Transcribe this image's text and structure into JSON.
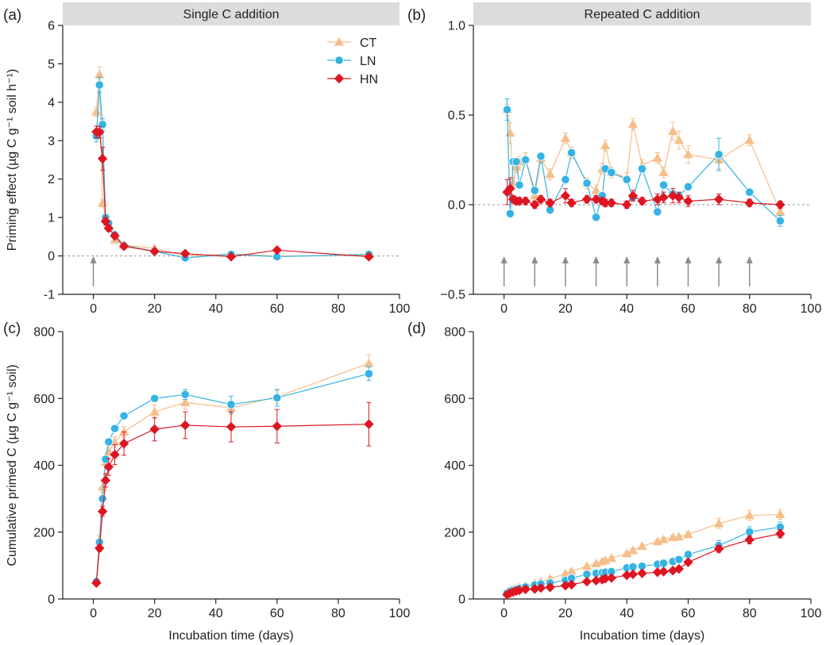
{
  "legend": [
    {
      "name": "CT",
      "color": "#F5BE8A",
      "marker": "triangle"
    },
    {
      "name": "LN",
      "color": "#35B3E3",
      "marker": "circle"
    },
    {
      "name": "HN",
      "color": "#DD1622",
      "marker": "diamond"
    }
  ],
  "chart_data": [
    {
      "panel": "(a)",
      "type": "line",
      "strip_title": "Single C addition",
      "ylabel": "Priming effect (µg C g⁻¹ soil h⁻¹)",
      "xlabel": "",
      "xlim": [
        -10,
        100
      ],
      "ylim": [
        -1,
        6
      ],
      "xticks": [
        0,
        20,
        40,
        60,
        80,
        100
      ],
      "yticks": [
        -1,
        0,
        1,
        2,
        3,
        4,
        5,
        6
      ],
      "zero_line": true,
      "arrows_x": [
        0
      ],
      "legend": "top-right",
      "series": [
        {
          "name": "CT",
          "x": [
            1,
            2,
            3,
            4,
            5,
            7,
            10,
            20,
            30,
            45,
            60,
            90
          ],
          "y": [
            3.75,
            4.72,
            1.38,
            1.0,
            0.8,
            0.42,
            0.28,
            0.2,
            0.0,
            0.05,
            0.0,
            0.02
          ],
          "err": [
            0.12,
            0.2,
            0.1,
            0.1,
            0.08,
            0.05,
            0.04,
            0.04,
            0.03,
            0.03,
            0.03,
            0.03
          ]
        },
        {
          "name": "LN",
          "x": [
            1,
            2,
            3,
            4,
            5,
            7,
            10,
            20,
            30,
            45,
            60,
            90
          ],
          "y": [
            3.12,
            4.45,
            3.42,
            1.0,
            0.85,
            0.55,
            0.27,
            0.12,
            -0.05,
            0.04,
            -0.02,
            0.04
          ],
          "err": [
            0.15,
            0.2,
            0.15,
            0.1,
            0.08,
            0.05,
            0.04,
            0.04,
            0.03,
            0.03,
            0.03,
            0.03
          ]
        },
        {
          "name": "HN",
          "x": [
            1,
            2,
            3,
            4,
            5,
            7,
            10,
            20,
            30,
            45,
            60,
            90
          ],
          "y": [
            3.23,
            3.22,
            2.53,
            0.9,
            0.72,
            0.52,
            0.25,
            0.12,
            0.06,
            -0.02,
            0.15,
            -0.02
          ],
          "err": [
            0.15,
            0.15,
            0.3,
            0.1,
            0.08,
            0.05,
            0.04,
            0.04,
            0.03,
            0.03,
            0.03,
            0.03
          ]
        }
      ]
    },
    {
      "panel": "(b)",
      "type": "line",
      "strip_title": "Repeated C addition",
      "ylabel": "",
      "xlabel": "",
      "xlim": [
        -10,
        100
      ],
      "ylim": [
        -0.5,
        1.0
      ],
      "xticks": [
        0,
        20,
        40,
        60,
        80,
        100
      ],
      "yticks": [
        -0.5,
        0.0,
        0.5,
        1.0
      ],
      "yticklabels": [
        "−0.5",
        "0.0",
        "0.5",
        "1.0"
      ],
      "zero_line": true,
      "arrows_x": [
        0,
        10,
        20,
        30,
        40,
        50,
        60,
        70,
        80
      ],
      "series": [
        {
          "name": "CT",
          "x": [
            1,
            2,
            3,
            4,
            5,
            7,
            10,
            12,
            15,
            20,
            22,
            27,
            30,
            32,
            33,
            35,
            40,
            42,
            45,
            50,
            52,
            55,
            57,
            60,
            70,
            80,
            90
          ],
          "y": [
            0.53,
            0.4,
            0.12,
            0.21,
            0.24,
            0.26,
            0.05,
            0.26,
            0.17,
            0.37,
            0.29,
            0.12,
            0.08,
            0.2,
            0.33,
            0.18,
            0.15,
            0.45,
            0.22,
            0.26,
            0.18,
            0.41,
            0.36,
            0.28,
            0.25,
            0.36,
            -0.04
          ],
          "err": [
            0.03,
            0.06,
            0.03,
            0.03,
            0.03,
            0.03,
            0.03,
            0.03,
            0.03,
            0.03,
            0.03,
            0.03,
            0.03,
            0.03,
            0.03,
            0.03,
            0.03,
            0.03,
            0.03,
            0.03,
            0.03,
            0.05,
            0.05,
            0.05,
            0.05,
            0.03,
            0.03
          ]
        },
        {
          "name": "LN",
          "x": [
            1,
            2,
            3,
            4,
            5,
            7,
            10,
            12,
            15,
            20,
            22,
            27,
            30,
            32,
            33,
            35,
            40,
            42,
            45,
            50,
            52,
            55,
            57,
            60,
            70,
            80,
            90
          ],
          "y": [
            0.53,
            -0.05,
            0.24,
            0.24,
            0.11,
            0.25,
            0.08,
            0.27,
            -0.03,
            0.14,
            0.29,
            0.12,
            -0.07,
            0.05,
            0.2,
            0.18,
            0.14,
            0.04,
            0.2,
            -0.04,
            0.11,
            0.06,
            0.05,
            0.1,
            0.28,
            0.07,
            -0.09
          ],
          "err": [
            0.06,
            0.02,
            0.02,
            0.02,
            0.02,
            0.02,
            0.02,
            0.02,
            0.02,
            0.02,
            0.02,
            0.02,
            0.02,
            0.02,
            0.02,
            0.02,
            0.02,
            0.02,
            0.02,
            0.02,
            0.02,
            0.02,
            0.02,
            0.02,
            0.09,
            0.02,
            0.03
          ]
        },
        {
          "name": "HN",
          "x": [
            1,
            2,
            3,
            4,
            5,
            7,
            10,
            12,
            15,
            20,
            22,
            27,
            30,
            32,
            33,
            35,
            40,
            42,
            45,
            50,
            52,
            55,
            57,
            60,
            70,
            80,
            90
          ],
          "y": [
            0.07,
            0.09,
            0.03,
            0.02,
            0.02,
            0.02,
            0.0,
            0.03,
            0.01,
            0.05,
            0.01,
            0.03,
            0.03,
            0.02,
            0.01,
            0.01,
            0.0,
            0.05,
            0.02,
            0.03,
            0.04,
            0.05,
            0.04,
            0.02,
            0.03,
            0.01,
            0.0
          ],
          "err": [
            0.07,
            0.06,
            0.02,
            0.02,
            0.02,
            0.02,
            0.02,
            0.02,
            0.02,
            0.04,
            0.02,
            0.02,
            0.02,
            0.02,
            0.02,
            0.02,
            0.02,
            0.03,
            0.02,
            0.03,
            0.03,
            0.04,
            0.03,
            0.03,
            0.03,
            0.02,
            0.02
          ]
        }
      ]
    },
    {
      "panel": "(c)",
      "type": "line",
      "strip_title": "",
      "ylabel": "Cumulative primed C (µg C g⁻¹ soil)",
      "xlabel": "Incubation time (days)",
      "xlim": [
        -10,
        100
      ],
      "ylim": [
        0,
        800
      ],
      "xticks": [
        0,
        20,
        40,
        60,
        80,
        100
      ],
      "yticks": [
        0,
        200,
        400,
        600,
        800
      ],
      "series": [
        {
          "name": "CT",
          "x": [
            1,
            2,
            3,
            4,
            5,
            7,
            10,
            20,
            30,
            45,
            60,
            90
          ],
          "y": [
            55,
            180,
            335,
            410,
            440,
            470,
            500,
            560,
            588,
            572,
            605,
            705
          ],
          "err": [
            5,
            10,
            15,
            15,
            15,
            15,
            15,
            20,
            20,
            20,
            20,
            25
          ]
        },
        {
          "name": "LN",
          "x": [
            1,
            2,
            3,
            4,
            5,
            7,
            10,
            20,
            30,
            45,
            60,
            90
          ],
          "y": [
            52,
            170,
            300,
            418,
            470,
            510,
            548,
            600,
            612,
            582,
            602,
            674
          ],
          "err": [
            5,
            10,
            10,
            10,
            10,
            10,
            10,
            10,
            15,
            25,
            25,
            20
          ]
        },
        {
          "name": "HN",
          "x": [
            1,
            2,
            3,
            4,
            5,
            7,
            10,
            20,
            30,
            45,
            60,
            90
          ],
          "y": [
            48,
            152,
            262,
            355,
            395,
            432,
            465,
            508,
            520,
            515,
            517,
            523
          ],
          "err": [
            5,
            10,
            15,
            20,
            25,
            30,
            35,
            35,
            40,
            45,
            50,
            65
          ]
        }
      ]
    },
    {
      "panel": "(d)",
      "type": "line",
      "strip_title": "",
      "ylabel": "",
      "xlabel": "Incubation time (days)",
      "xlim": [
        -10,
        100
      ],
      "ylim": [
        0,
        800
      ],
      "xticks": [
        0,
        20,
        40,
        60,
        80,
        100
      ],
      "yticks": [
        0,
        200,
        400,
        600,
        800
      ],
      "series": [
        {
          "name": "CT",
          "x": [
            1,
            2,
            3,
            4,
            5,
            7,
            10,
            12,
            15,
            20,
            22,
            27,
            30,
            32,
            33,
            35,
            40,
            42,
            45,
            50,
            52,
            55,
            57,
            60,
            70,
            80,
            90
          ],
          "y": [
            20,
            27,
            30,
            33,
            36,
            40,
            47,
            52,
            60,
            76,
            83,
            98,
            106,
            112,
            115,
            122,
            136,
            145,
            158,
            172,
            178,
            184,
            186,
            193,
            226,
            250,
            253
          ],
          "err": [
            3,
            3,
            3,
            3,
            3,
            3,
            4,
            4,
            4,
            5,
            5,
            5,
            5,
            5,
            5,
            5,
            6,
            6,
            6,
            6,
            6,
            7,
            7,
            8,
            15,
            15,
            15
          ]
        },
        {
          "name": "LN",
          "x": [
            1,
            2,
            3,
            4,
            5,
            7,
            10,
            12,
            15,
            20,
            22,
            27,
            30,
            32,
            33,
            35,
            40,
            42,
            45,
            50,
            52,
            55,
            57,
            60,
            70,
            80,
            90
          ],
          "y": [
            18,
            24,
            27,
            30,
            32,
            36,
            42,
            45,
            48,
            56,
            62,
            74,
            77,
            79,
            80,
            82,
            93,
            96,
            98,
            104,
            107,
            112,
            118,
            133,
            160,
            201,
            215
          ],
          "err": [
            3,
            3,
            3,
            3,
            3,
            3,
            4,
            4,
            4,
            4,
            4,
            4,
            5,
            5,
            5,
            5,
            5,
            5,
            5,
            6,
            6,
            6,
            6,
            8,
            15,
            15,
            15
          ]
        },
        {
          "name": "HN",
          "x": [
            1,
            2,
            3,
            4,
            5,
            7,
            10,
            12,
            15,
            20,
            22,
            27,
            30,
            32,
            33,
            35,
            40,
            42,
            45,
            50,
            52,
            55,
            57,
            60,
            70,
            80,
            90
          ],
          "y": [
            13,
            18,
            21,
            24,
            26,
            29,
            30,
            33,
            35,
            40,
            43,
            52,
            55,
            58,
            61,
            63,
            71,
            74,
            77,
            80,
            82,
            85,
            90,
            110,
            150,
            177,
            195
          ],
          "err": [
            3,
            3,
            3,
            3,
            3,
            3,
            3,
            3,
            3,
            4,
            4,
            4,
            4,
            4,
            4,
            4,
            5,
            5,
            5,
            5,
            5,
            5,
            6,
            6,
            10,
            12,
            12
          ]
        }
      ]
    }
  ]
}
